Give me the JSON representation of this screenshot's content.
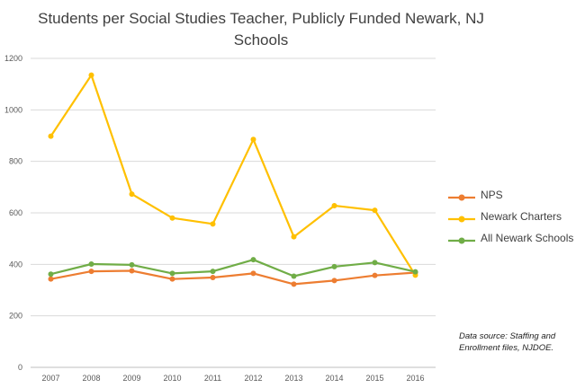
{
  "chart_data": {
    "type": "line",
    "title": "Students per Social Studies Teacher, Publicly Funded Newark, NJ",
    "title_line2": "Schools",
    "categories": [
      "2007",
      "2008",
      "2009",
      "2010",
      "2011",
      "2012",
      "2013",
      "2014",
      "2015",
      "2016"
    ],
    "series": [
      {
        "name": "NPS",
        "color": "#ED7D31",
        "values": [
          343,
          373,
          375,
          343,
          349,
          365,
          323,
          337,
          357,
          368
        ]
      },
      {
        "name": "Newark Charters",
        "color": "#FFC000",
        "values": [
          898,
          1135,
          673,
          580,
          557,
          885,
          507,
          628,
          610,
          358
        ]
      },
      {
        "name": "All Newark Schools",
        "color": "#70AD47",
        "values": [
          362,
          401,
          398,
          365,
          373,
          418,
          354,
          391,
          407,
          371
        ]
      }
    ],
    "yticks": [
      "0",
      "200",
      "400",
      "600",
      "800",
      "1000",
      "1200"
    ],
    "ylim": [
      0,
      1200
    ],
    "grid": true,
    "legend_position": "right",
    "source_note": "Data source: Staffing and Enrollment  files, NJDOE."
  }
}
